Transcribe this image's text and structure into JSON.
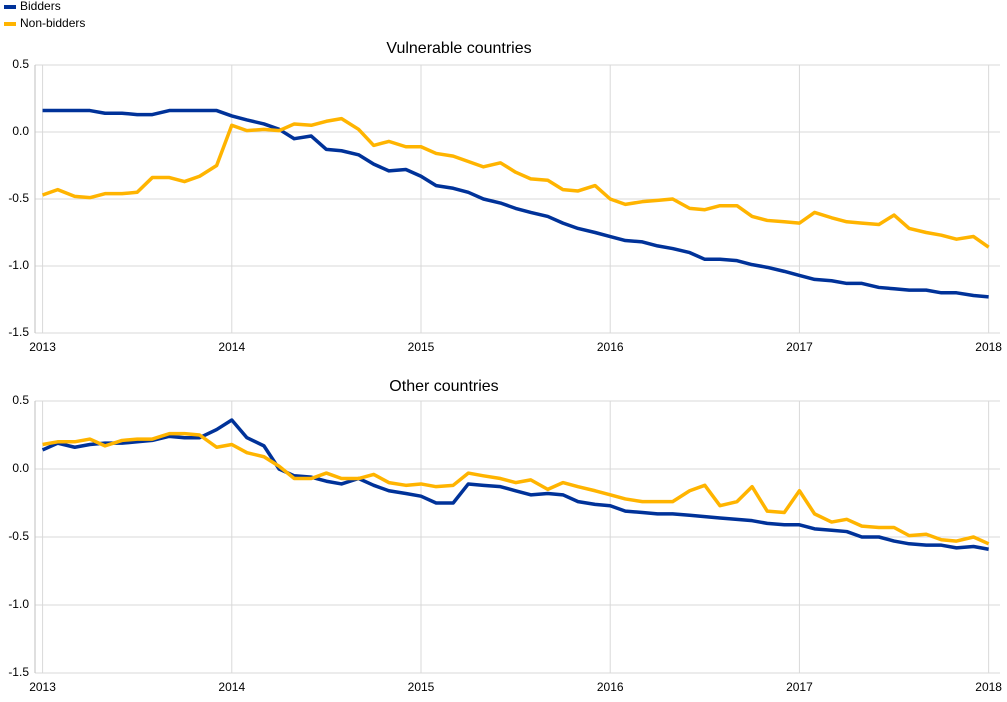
{
  "chart_data": [
    {
      "type": "line",
      "title": "Vulnerable countries",
      "x": [
        2013,
        2013.08,
        2013.17,
        2013.25,
        2013.33,
        2013.42,
        2013.5,
        2013.58,
        2013.67,
        2013.75,
        2013.83,
        2013.92,
        2014,
        2014.08,
        2014.17,
        2014.25,
        2014.33,
        2014.42,
        2014.5,
        2014.58,
        2014.67,
        2014.75,
        2014.83,
        2014.92,
        2015,
        2015.08,
        2015.17,
        2015.25,
        2015.33,
        2015.42,
        2015.5,
        2015.58,
        2015.67,
        2015.75,
        2015.83,
        2015.92,
        2016,
        2016.08,
        2016.17,
        2016.25,
        2016.33,
        2016.42,
        2016.5,
        2016.58,
        2016.67,
        2016.75,
        2016.83,
        2016.92,
        2017,
        2017.08,
        2017.17,
        2017.25,
        2017.33,
        2017.42,
        2017.5,
        2017.58,
        2017.67,
        2017.75,
        2017.83,
        2017.92,
        2018
      ],
      "series": [
        {
          "name": "Bidders",
          "color": "#003299",
          "values": [
            0.16,
            0.16,
            0.16,
            0.16,
            0.14,
            0.14,
            0.13,
            0.13,
            0.16,
            0.16,
            0.16,
            0.16,
            0.12,
            0.09,
            0.06,
            0.02,
            -0.05,
            -0.03,
            -0.13,
            -0.14,
            -0.17,
            -0.24,
            -0.29,
            -0.28,
            -0.33,
            -0.4,
            -0.42,
            -0.45,
            -0.5,
            -0.53,
            -0.57,
            -0.6,
            -0.63,
            -0.68,
            -0.72,
            -0.75,
            -0.78,
            -0.81,
            -0.82,
            -0.85,
            -0.87,
            -0.9,
            -0.95,
            -0.95,
            -0.96,
            -0.99,
            -1.01,
            -1.04,
            -1.07,
            -1.1,
            -1.11,
            -1.13,
            -1.13,
            -1.16,
            -1.17,
            -1.18,
            -1.18,
            -1.2,
            -1.2,
            -1.22,
            -1.23
          ]
        },
        {
          "name": "Non-bidders",
          "color": "#ffb400",
          "values": [
            -0.47,
            -0.43,
            -0.48,
            -0.49,
            -0.46,
            -0.46,
            -0.45,
            -0.34,
            -0.34,
            -0.37,
            -0.33,
            -0.25,
            0.05,
            0.01,
            0.02,
            0.01,
            0.06,
            0.05,
            0.08,
            0.1,
            0.02,
            -0.1,
            -0.07,
            -0.11,
            -0.11,
            -0.16,
            -0.18,
            -0.22,
            -0.26,
            -0.23,
            -0.3,
            -0.35,
            -0.36,
            -0.43,
            -0.44,
            -0.4,
            -0.5,
            -0.54,
            -0.52,
            -0.51,
            -0.5,
            -0.57,
            -0.58,
            -0.55,
            -0.55,
            -0.63,
            -0.66,
            -0.67,
            -0.68,
            -0.6,
            -0.64,
            -0.67,
            -0.68,
            -0.69,
            -0.62,
            -0.72,
            -0.75,
            -0.77,
            -0.8,
            -0.78,
            -0.86
          ]
        }
      ],
      "xlim": [
        2012.96,
        2018.06
      ],
      "xticks": [
        2013,
        2014,
        2015,
        2016,
        2017,
        2018
      ],
      "ylim": [
        -1.5,
        0.5
      ],
      "yticks": [
        -1.5,
        {
          "value": -1,
          "label": "-1.0"
        },
        -0.5,
        {
          "value": 0,
          "label": "0.0"
        },
        0.5
      ],
      "grid": true
    },
    {
      "type": "line",
      "title": "Other countries",
      "x": [
        2013,
        2013.08,
        2013.17,
        2013.25,
        2013.33,
        2013.42,
        2013.5,
        2013.58,
        2013.67,
        2013.75,
        2013.83,
        2013.92,
        2014,
        2014.08,
        2014.17,
        2014.25,
        2014.33,
        2014.42,
        2014.5,
        2014.58,
        2014.67,
        2014.75,
        2014.83,
        2014.92,
        2015,
        2015.08,
        2015.17,
        2015.25,
        2015.33,
        2015.42,
        2015.5,
        2015.58,
        2015.67,
        2015.75,
        2015.83,
        2015.92,
        2016,
        2016.08,
        2016.17,
        2016.25,
        2016.33,
        2016.42,
        2016.5,
        2016.58,
        2016.67,
        2016.75,
        2016.83,
        2016.92,
        2017,
        2017.08,
        2017.17,
        2017.25,
        2017.33,
        2017.42,
        2017.5,
        2017.58,
        2017.67,
        2017.75,
        2017.83,
        2017.92,
        2018
      ],
      "series": [
        {
          "color": "#003299",
          "values": [
            0.14,
            0.19,
            0.16,
            0.18,
            0.19,
            0.19,
            0.2,
            0.21,
            0.24,
            0.23,
            0.23,
            0.29,
            0.36,
            0.23,
            0.17,
            0.0,
            -0.05,
            -0.06,
            -0.09,
            -0.11,
            -0.07,
            -0.12,
            -0.16,
            -0.18,
            -0.2,
            -0.25,
            -0.25,
            -0.11,
            -0.12,
            -0.13,
            -0.16,
            -0.19,
            -0.18,
            -0.19,
            -0.24,
            -0.26,
            -0.27,
            -0.31,
            -0.32,
            -0.33,
            -0.33,
            -0.34,
            -0.35,
            -0.36,
            -0.37,
            -0.38,
            -0.4,
            -0.41,
            -0.41,
            -0.44,
            -0.45,
            -0.46,
            -0.5,
            -0.5,
            -0.53,
            -0.55,
            -0.56,
            -0.56,
            -0.58,
            -0.57,
            -0.59
          ]
        },
        {
          "color": "#ffb400",
          "values": [
            0.18,
            0.2,
            0.2,
            0.22,
            0.17,
            0.21,
            0.22,
            0.22,
            0.26,
            0.26,
            0.25,
            0.16,
            0.18,
            0.12,
            0.09,
            0.02,
            -0.07,
            -0.07,
            -0.03,
            -0.07,
            -0.07,
            -0.04,
            -0.1,
            -0.12,
            -0.11,
            -0.13,
            -0.12,
            -0.03,
            -0.05,
            -0.07,
            -0.1,
            -0.08,
            -0.15,
            -0.1,
            -0.13,
            -0.16,
            -0.19,
            -0.22,
            -0.24,
            -0.24,
            -0.24,
            -0.16,
            -0.12,
            -0.27,
            -0.24,
            -0.13,
            -0.31,
            -0.32,
            -0.16,
            -0.33,
            -0.39,
            -0.37,
            -0.42,
            -0.43,
            -0.43,
            -0.49,
            -0.48,
            -0.52,
            -0.53,
            -0.5,
            -0.55
          ]
        }
      ],
      "xlim": [
        2012.96,
        2018.06
      ],
      "xticks": [
        2013,
        2014,
        2015,
        2016,
        2017,
        2018
      ],
      "ylim": [
        -1.5,
        0.5
      ],
      "yticks": [
        -1.5,
        {
          "value": -1,
          "label": "-1.0"
        },
        -0.5,
        {
          "value": 0,
          "label": "0.0"
        },
        0.5
      ],
      "grid": true
    }
  ]
}
